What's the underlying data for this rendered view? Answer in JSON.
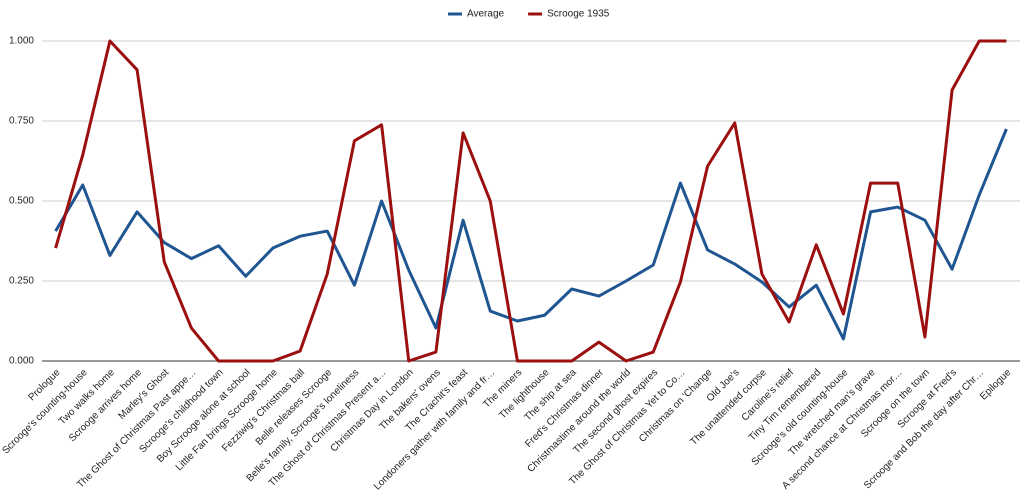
{
  "chart_data": {
    "type": "line",
    "categories": [
      "Prologue",
      "Scrooge's counting-house",
      "Two walks home",
      "Scrooge arrives home",
      "Marley's Ghost",
      "The Ghost of Christmas Past appe…",
      "Scrooge's childhood town",
      "Boy Scrooge alone at school",
      "Little Fan brings Scrooge home",
      "Fezziwig's Christmas ball",
      "Belle releases Scrooge",
      "Belle's family, Scrooge's loneliness",
      "The Ghost of Christmas Present a…",
      "Christmas Day in London",
      "The bakers' ovens",
      "The Crachit's feast",
      "Londoners gather with family and fr…",
      "The miners",
      "The lighthouse",
      "The ship at sea",
      "Fred's Christmas dinner",
      "Christmastime around the world",
      "The second ghost expires",
      "The Ghost of Christmas Yet to Co…",
      "Christmas on 'Change",
      "Old Joe's",
      "The unattended corpse",
      "Caroline's relief",
      "Tiny Tim remembered",
      "Scrooge's old counting-house",
      "The wretched man's grave",
      "A second chance at Christmas mor…",
      "Scrooge on the town",
      "Scrooge at Fred's",
      "Scrooge and Bob the day after Chr…",
      "Epilogue"
    ],
    "series": [
      {
        "name": "Average",
        "color": "#1f5591",
        "values": [
          0.406,
          0.55,
          0.33,
          0.466,
          0.37,
          0.32,
          0.36,
          0.265,
          0.353,
          0.39,
          0.406,
          0.237,
          0.5,
          0.284,
          0.103,
          0.44,
          0.156,
          0.125,
          0.143,
          0.225,
          0.203,
          0.25,
          0.3,
          0.556,
          0.347,
          0.303,
          0.247,
          0.169,
          0.237,
          0.069,
          0.466,
          0.481,
          0.44,
          0.287,
          0.519,
          0.725
        ]
      },
      {
        "name": "Scrooge 1935",
        "color": "#9c0f0f",
        "values": [
          0.353,
          0.644,
          1.0,
          0.91,
          0.31,
          0.103,
          0,
          0,
          0,
          0.031,
          0.272,
          0.688,
          0.738,
          0,
          0.028,
          0.713,
          0.5,
          0,
          0,
          0,
          0.059,
          0,
          0.028,
          0.247,
          0.609,
          0.744,
          0.272,
          0.122,
          0.363,
          0.147,
          0.556,
          0.556,
          0.075,
          0.847,
          1.0,
          1.0
        ]
      }
    ],
    "ylim": [
      0,
      1
    ],
    "yticks": [
      {
        "value": 0,
        "label": "0.000"
      },
      {
        "value": 0.25,
        "label": "0.250"
      },
      {
        "value": 0.5,
        "label": "0.500"
      },
      {
        "value": 0.75,
        "label": "0.750"
      },
      {
        "value": 1,
        "label": "1.000"
      }
    ],
    "grid": true,
    "legend": "top"
  }
}
